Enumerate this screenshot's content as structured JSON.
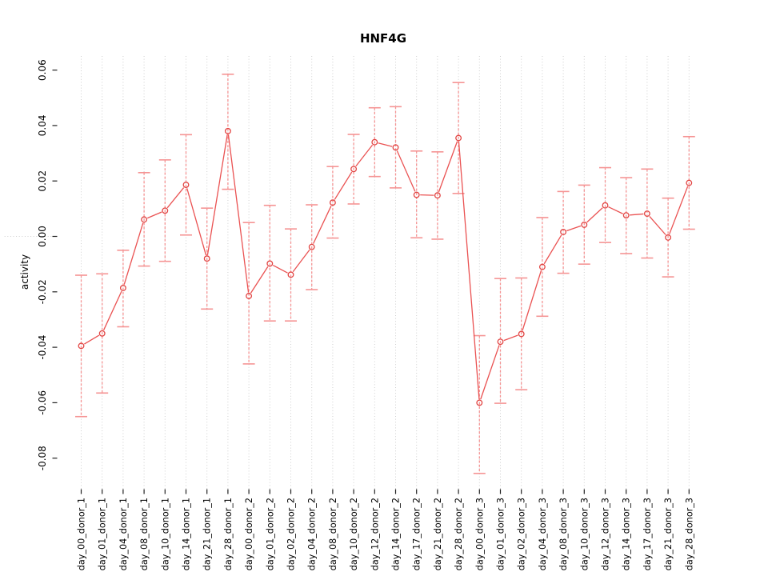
{
  "chart_data": {
    "type": "line",
    "title": "HNF4G",
    "xlabel": "",
    "ylabel": "activity",
    "legend": "none",
    "grid": "vertical dotted gridline at every category; dotted horizontal line at y=0; outer box frame",
    "marker": "open-circle",
    "error_bars": true,
    "categories": [
      "day_00_donor_1",
      "day_01_donor_1",
      "day_04_donor_1",
      "day_08_donor_1",
      "day_10_donor_1",
      "day_14_donor_1",
      "day_21_donor_1",
      "day_28_donor_1",
      "day_00_donor_2",
      "day_01_donor_2",
      "day_02_donor_2",
      "day_04_donor_2",
      "day_08_donor_2",
      "day_10_donor_2",
      "day_12_donor_2",
      "day_14_donor_2",
      "day_17_donor_2",
      "day_21_donor_2",
      "day_28_donor_2",
      "day_00_donor_3",
      "day_01_donor_3",
      "day_02_donor_3",
      "day_04_donor_3",
      "day_08_donor_3",
      "day_10_donor_3",
      "day_12_donor_3",
      "day_14_donor_3",
      "day_17_donor_3",
      "day_21_donor_3",
      "day_28_donor_3"
    ],
    "series": [
      {
        "name": "activity",
        "values": [
          -0.0395,
          -0.035,
          -0.0186,
          0.0061,
          0.0093,
          0.0186,
          -0.008,
          0.038,
          -0.0215,
          -0.0098,
          -0.0138,
          -0.0038,
          0.0122,
          0.0243,
          0.034,
          0.0321,
          0.015,
          0.0148,
          0.0355,
          -0.06,
          -0.038,
          -0.0352,
          -0.011,
          0.0016,
          0.0042,
          0.0112,
          0.0076,
          0.0082,
          -0.0004,
          0.0193
        ],
        "error_low": [
          -0.065,
          -0.0565,
          -0.0326,
          -0.0107,
          -0.009,
          0.0005,
          -0.0262,
          0.017,
          -0.046,
          -0.0305,
          -0.0305,
          -0.0192,
          -0.0006,
          0.0117,
          0.0216,
          0.0175,
          -0.0005,
          -0.001,
          0.0155,
          -0.0855,
          -0.0602,
          -0.0553,
          -0.0288,
          -0.0133,
          -0.01,
          -0.0022,
          -0.0062,
          -0.0078,
          -0.0146,
          0.0026
        ],
        "error_high": [
          -0.014,
          -0.0135,
          -0.005,
          0.023,
          0.0276,
          0.0367,
          0.0102,
          0.0585,
          0.005,
          0.0112,
          0.0027,
          0.0114,
          0.0252,
          0.0368,
          0.0464,
          0.0468,
          0.0308,
          0.0305,
          0.0555,
          -0.0358,
          -0.0152,
          -0.015,
          0.0068,
          0.0162,
          0.0185,
          0.0248,
          0.0212,
          0.0243,
          0.0138,
          0.036
        ]
      }
    ],
    "yticks": [
      -0.08,
      -0.06,
      -0.04,
      -0.02,
      0,
      0.02,
      0.04,
      0.06
    ],
    "ytick_labels": [
      "-0.08",
      "-0.06",
      "-0.04",
      "-0.02",
      "0.00",
      "0.02",
      "0.04",
      "0.06"
    ],
    "ylim": [
      -0.0912,
      0.0651
    ],
    "colors": {
      "line": "#ea5252",
      "marker": "#e24543",
      "error_bar": "#f59494",
      "grid": "#cfcfcf",
      "frame": "#555555",
      "tick": "#222222",
      "text": "#000000",
      "background": "#ffffff"
    }
  }
}
